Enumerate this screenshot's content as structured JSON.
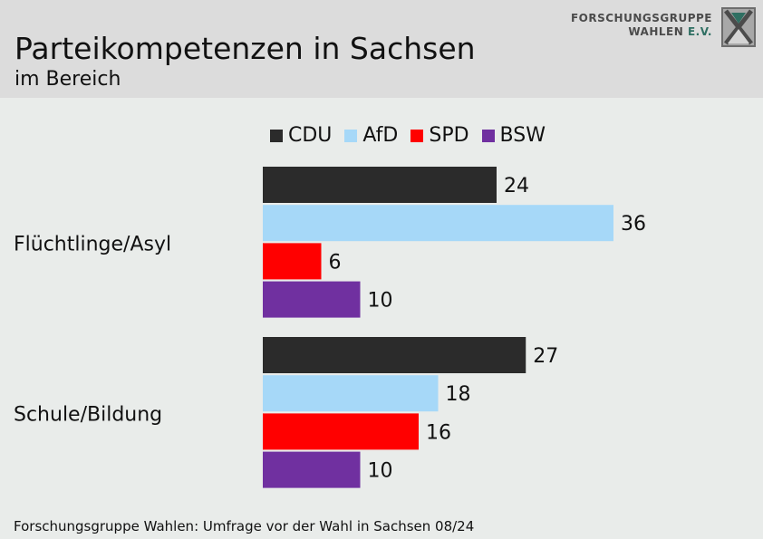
{
  "header": {
    "title": "Parteikompetenzen in Sachsen",
    "subtitle": "im Bereich"
  },
  "logo": {
    "line1": "FORSCHUNGSGRUPPE",
    "line2_main": "WAHLEN",
    "line2_suffix": "E.V."
  },
  "footer": {
    "source": "Forschungsgruppe Wahlen: Umfrage vor der Wahl in Sachsen 08/24"
  },
  "chart_data": {
    "type": "bar",
    "orientation": "horizontal",
    "title": "Parteikompetenzen in Sachsen",
    "subtitle": "im Bereich",
    "categories": [
      "Flüchtlinge/Asyl",
      "Schule/Bildung"
    ],
    "series": [
      {
        "name": "CDU",
        "color": "#2b2b2b",
        "values": [
          24,
          27
        ]
      },
      {
        "name": "AfD",
        "color": "#a6d8f8",
        "values": [
          36,
          18
        ]
      },
      {
        "name": "SPD",
        "color": "#ff0000",
        "values": [
          6,
          16
        ]
      },
      {
        "name": "BSW",
        "color": "#7030a0",
        "values": [
          10,
          10
        ]
      }
    ],
    "xlim": [
      0,
      36
    ],
    "grid": false,
    "legend_position": "top",
    "data_labels": true
  }
}
